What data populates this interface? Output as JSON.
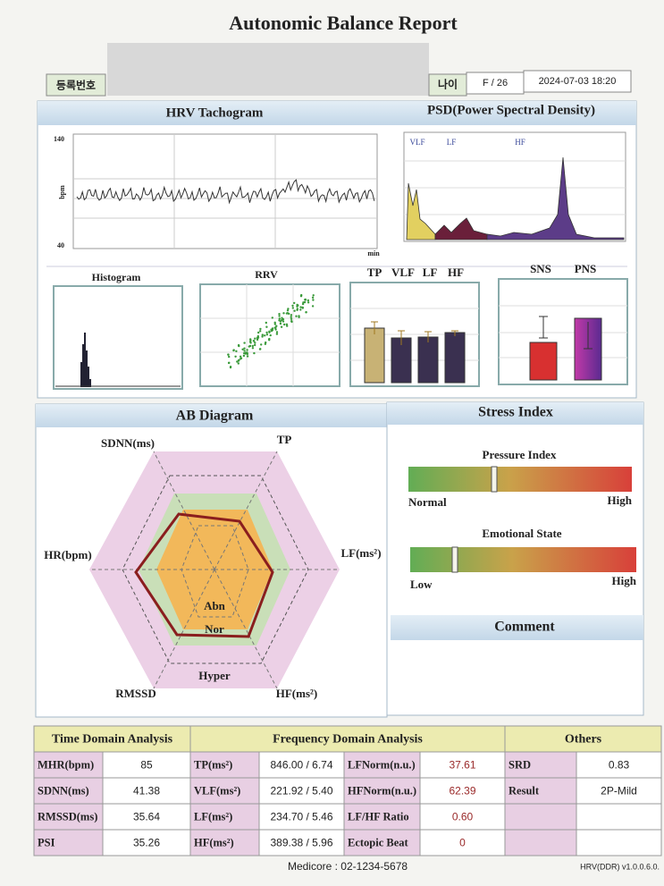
{
  "title": "Autonomic Balance Report",
  "header": {
    "registration_label": "등록번호",
    "age_label": "나이",
    "sex_age": "F / 26",
    "datetime": "2024-07-03 18:20"
  },
  "tachogram": {
    "title": "HRV Tachogram",
    "y_label": "bpm",
    "y_max": 140,
    "y_min": 40,
    "x_label": "min"
  },
  "psd": {
    "title": "PSD(Power Spectral Density)",
    "bands": [
      "VLF",
      "LF",
      "HF"
    ]
  },
  "histogram": {
    "title": "Histogram"
  },
  "rrv": {
    "title": "RRV"
  },
  "power": {
    "labels": [
      "TP",
      "VLF",
      "LF",
      "HF"
    ]
  },
  "balance": {
    "labels": [
      "SNS",
      "PNS"
    ]
  },
  "ab_diagram": {
    "title": "AB Diagram",
    "axes": [
      "SDNN(ms)",
      "TP",
      "LF(ms²)",
      "HF(ms²)",
      "RMSSD",
      "HR(bpm)"
    ],
    "zones": [
      "Abn",
      "Nor",
      "Hyper"
    ]
  },
  "stress_index": {
    "title": "Stress Index",
    "gauges": [
      {
        "label": "Pressure Index",
        "low": "Normal",
        "high": "High"
      },
      {
        "label": "Emotional State",
        "low": "Low",
        "high": "High"
      }
    ]
  },
  "comment": {
    "title": "Comment"
  },
  "table": {
    "sections": [
      "Time Domain Analysis",
      "Frequency Domain Analysis",
      "Others"
    ],
    "rows": [
      [
        "MHR(bpm)",
        "85",
        "TP(ms²)",
        "846.00 / 6.74",
        "LFNorm(n.u.)",
        "37.61",
        "SRD",
        "0.83"
      ],
      [
        "SDNN(ms)",
        "41.38",
        "VLF(ms²)",
        "221.92 / 5.40",
        "HFNorm(n.u.)",
        "62.39",
        "Result",
        "2P-Mild"
      ],
      [
        "RMSSD(ms)",
        "35.64",
        "LF(ms²)",
        "234.70 / 5.46",
        "LF/HF Ratio",
        "0.60"
      ],
      [
        "PSI",
        "35.26",
        "HF(ms²)",
        "389.38 / 5.96",
        "Ectopic Beat",
        "0"
      ]
    ]
  },
  "footer": {
    "contact": "Medicore : 02-1234-5678",
    "version": "HRV(DDR) v1.0.0.6.0."
  }
}
